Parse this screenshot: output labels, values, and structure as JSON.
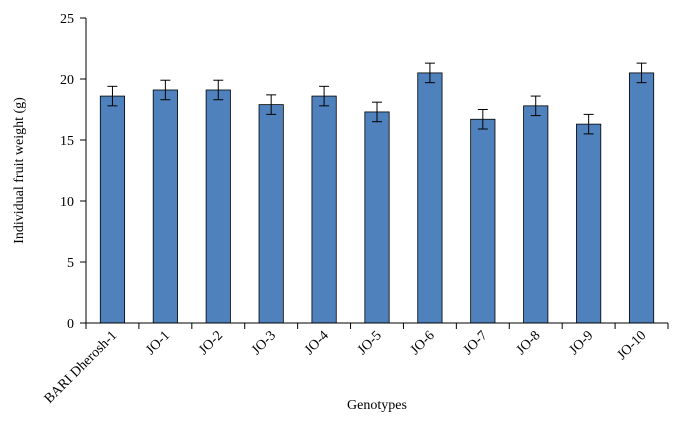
{
  "chart_data": {
    "type": "bar",
    "categories": [
      "BARI Dherosh-1",
      "JO-1",
      "JO-2",
      "JO-3",
      "JO-4",
      "JO-5",
      "JO-6",
      "JO-7",
      "JO-8",
      "JO-9",
      "JO-10"
    ],
    "series": [
      {
        "values": [
          18.6,
          19.1,
          19.1,
          17.9,
          18.6,
          17.3,
          20.5,
          16.7,
          17.8,
          16.3,
          20.5
        ],
        "errors": [
          0.8,
          0.8,
          0.8,
          0.8,
          0.8,
          0.8,
          0.8,
          0.8,
          0.8,
          0.8,
          0.8
        ]
      }
    ],
    "xlabel": "Genotypes",
    "ylabel": "Individual fruit weight (g)",
    "ylim": [
      0,
      25
    ],
    "yticks": [
      0,
      5,
      10,
      15,
      20,
      25
    ],
    "grid": false,
    "legend": "none",
    "colors": {
      "bar_fill": "#4f81bd",
      "bar_stroke": "#000000",
      "axis": "#000000"
    }
  }
}
